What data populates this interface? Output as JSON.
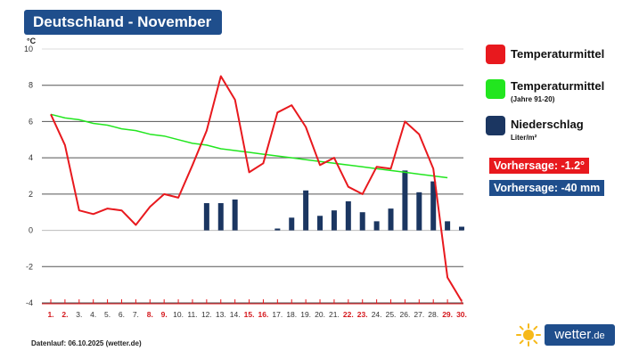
{
  "title": "Deutschland - November",
  "footer_note": "Datenlauf: 06.10.2025 (wetter.de)",
  "brand": {
    "name": "wetter",
    "tld": ".de"
  },
  "legend": [
    {
      "label": "Temperaturmittel",
      "sub": "",
      "color": "#e8191e"
    },
    {
      "label": "Temperaturmittel",
      "sub": "(Jahre 91-20)",
      "color": "#22e61f"
    },
    {
      "label": "Niederschlag",
      "sub": "Liter/m²",
      "color": "#1b3661"
    }
  ],
  "forecasts": [
    {
      "text": "Vorhersage: -1.2°",
      "color": "#e8191e"
    },
    {
      "text": "Vorhersage: -40 mm",
      "color": "#1f4e8c"
    }
  ],
  "chart_data": {
    "type": "line",
    "ylabel": "°C",
    "ylim": [
      -4,
      10
    ],
    "yticks": [
      -4,
      -2,
      0,
      2,
      4,
      6,
      8,
      10
    ],
    "grid": true,
    "categories": [
      "1.",
      "2.",
      "3.",
      "4.",
      "5.",
      "6.",
      "7.",
      "8.",
      "9.",
      "10.",
      "11.",
      "12.",
      "13.",
      "14.",
      "15.",
      "16.",
      "17.",
      "18.",
      "19.",
      "20.",
      "21.",
      "22.",
      "23.",
      "24.",
      "25.",
      "26.",
      "27.",
      "28.",
      "29.",
      "30."
    ],
    "highlight_days": [
      1,
      2,
      8,
      9,
      15,
      16,
      22,
      23,
      29,
      30
    ],
    "series": [
      {
        "name": "Temperaturmittel",
        "kind": "line",
        "color": "#e8191e",
        "values": [
          6.4,
          4.7,
          1.1,
          0.9,
          1.2,
          1.1,
          0.3,
          1.3,
          2.0,
          1.8,
          3.6,
          5.5,
          8.5,
          7.2,
          3.2,
          3.7,
          6.5,
          6.9,
          5.7,
          3.6,
          4.0,
          2.4,
          2.0,
          3.5,
          3.4,
          6.0,
          5.3,
          3.4,
          -2.6,
          -3.9
        ]
      },
      {
        "name": "Temperaturmittel (Jahre 91-20)",
        "kind": "line",
        "color": "#22e61f",
        "values": [
          6.4,
          6.2,
          6.1,
          5.9,
          5.8,
          5.6,
          5.5,
          5.3,
          5.2,
          5.0,
          4.8,
          4.7,
          4.5,
          4.4,
          4.3,
          4.2,
          4.1,
          4.0,
          3.9,
          3.8,
          3.7,
          3.6,
          3.5,
          3.4,
          3.3,
          3.2,
          3.1,
          3.0,
          2.9,
          null
        ]
      },
      {
        "name": "Niederschlag",
        "kind": "bar",
        "color": "#1b3661",
        "values": [
          0,
          0,
          0,
          0,
          0,
          0,
          0,
          0,
          0,
          0,
          0,
          1.5,
          1.5,
          1.7,
          0,
          0,
          0.1,
          0.7,
          2.2,
          0.8,
          1.1,
          1.6,
          1.0,
          0.5,
          1.2,
          3.3,
          2.1,
          2.7,
          0.5,
          0.2
        ]
      }
    ]
  }
}
